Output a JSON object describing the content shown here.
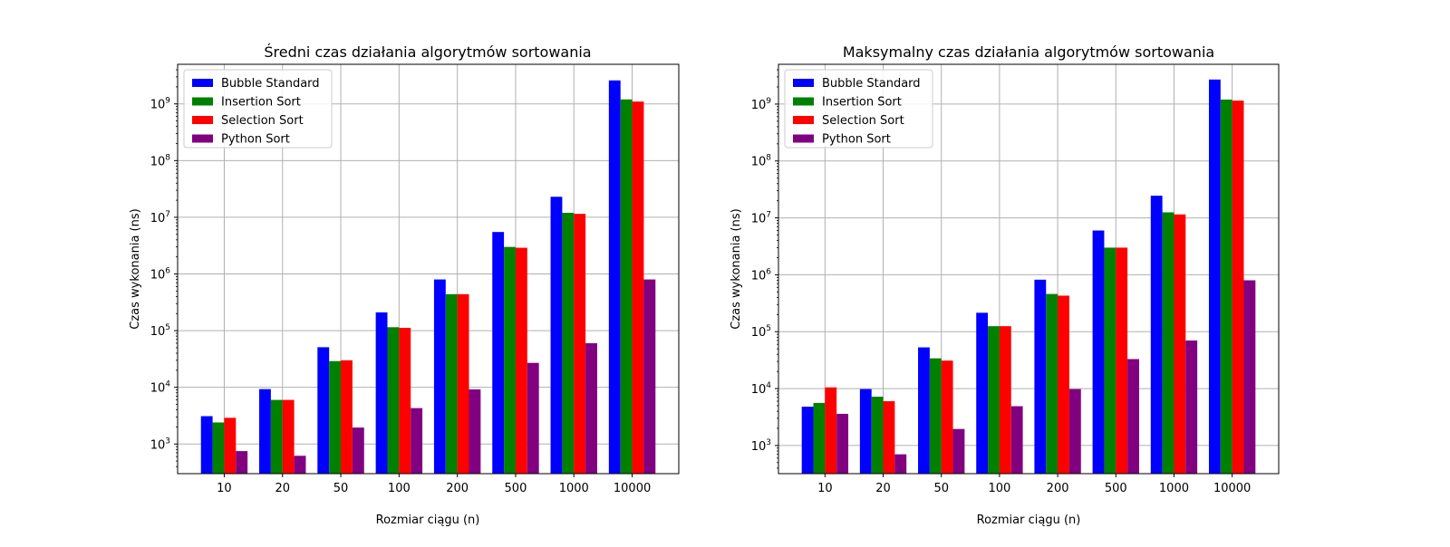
{
  "chart_data": [
    {
      "type": "bar",
      "title": "Średni czas działania algorytmów sortowania",
      "xlabel": "Rozmiar ciągu (n)",
      "ylabel": "Czas wykonania (ns)",
      "yscale": "log",
      "ylim": [
        300,
        5000000000
      ],
      "grid": true,
      "legend_position": "top-left",
      "categories": [
        "10",
        "20",
        "50",
        "100",
        "200",
        "500",
        "1000",
        "10000"
      ],
      "series": [
        {
          "name": "Bubble Standard",
          "color": "#0000ff",
          "values": [
            3100,
            9300,
            51000,
            210000,
            800000,
            5500000,
            23000000,
            2600000000
          ]
        },
        {
          "name": "Insertion Sort",
          "color": "#008000",
          "values": [
            2400,
            6000,
            29000,
            115000,
            440000,
            3000000,
            12000000,
            1200000000
          ]
        },
        {
          "name": "Selection Sort",
          "color": "#ff0000",
          "values": [
            2900,
            6000,
            30000,
            112000,
            440000,
            2900000,
            11500000,
            1100000000
          ]
        },
        {
          "name": "Python Sort",
          "color": "#800080",
          "values": [
            750,
            620,
            1950,
            4300,
            9200,
            27000,
            60000,
            800000
          ]
        }
      ],
      "yticks": [
        {
          "value": 1000,
          "base": "10",
          "exp": "3"
        },
        {
          "value": 10000,
          "base": "10",
          "exp": "4"
        },
        {
          "value": 100000,
          "base": "10",
          "exp": "5"
        },
        {
          "value": 1000000,
          "base": "10",
          "exp": "6"
        },
        {
          "value": 10000000,
          "base": "10",
          "exp": "7"
        },
        {
          "value": 100000000,
          "base": "10",
          "exp": "8"
        },
        {
          "value": 1000000000,
          "base": "10",
          "exp": "9"
        }
      ]
    },
    {
      "type": "bar",
      "title": "Maksymalny czas działania algorytmów sortowania",
      "xlabel": "Rozmiar ciągu (n)",
      "ylabel": "Czas wykonania (ns)",
      "yscale": "log",
      "ylim": [
        320,
        5000000000
      ],
      "grid": true,
      "legend_position": "top-left",
      "categories": [
        "10",
        "20",
        "50",
        "100",
        "200",
        "500",
        "1000",
        "10000"
      ],
      "series": [
        {
          "name": "Bubble Standard",
          "color": "#0000ff",
          "values": [
            4800,
            9800,
            53000,
            215000,
            820000,
            6000000,
            24500000,
            2700000000
          ]
        },
        {
          "name": "Insertion Sort",
          "color": "#008000",
          "values": [
            5600,
            7200,
            34000,
            125000,
            460000,
            3000000,
            12500000,
            1200000000
          ]
        },
        {
          "name": "Selection Sort",
          "color": "#ff0000",
          "values": [
            10500,
            6000,
            31000,
            125000,
            430000,
            3000000,
            11500000,
            1150000000
          ]
        },
        {
          "name": "Python Sort",
          "color": "#800080",
          "values": [
            3600,
            700,
            1950,
            4900,
            9800,
            33000,
            70000,
            800000
          ]
        }
      ],
      "yticks": [
        {
          "value": 1000,
          "base": "10",
          "exp": "3"
        },
        {
          "value": 10000,
          "base": "10",
          "exp": "4"
        },
        {
          "value": 100000,
          "base": "10",
          "exp": "5"
        },
        {
          "value": 1000000,
          "base": "10",
          "exp": "6"
        },
        {
          "value": 10000000,
          "base": "10",
          "exp": "7"
        },
        {
          "value": 100000000,
          "base": "10",
          "exp": "8"
        },
        {
          "value": 1000000000,
          "base": "10",
          "exp": "9"
        }
      ]
    }
  ]
}
